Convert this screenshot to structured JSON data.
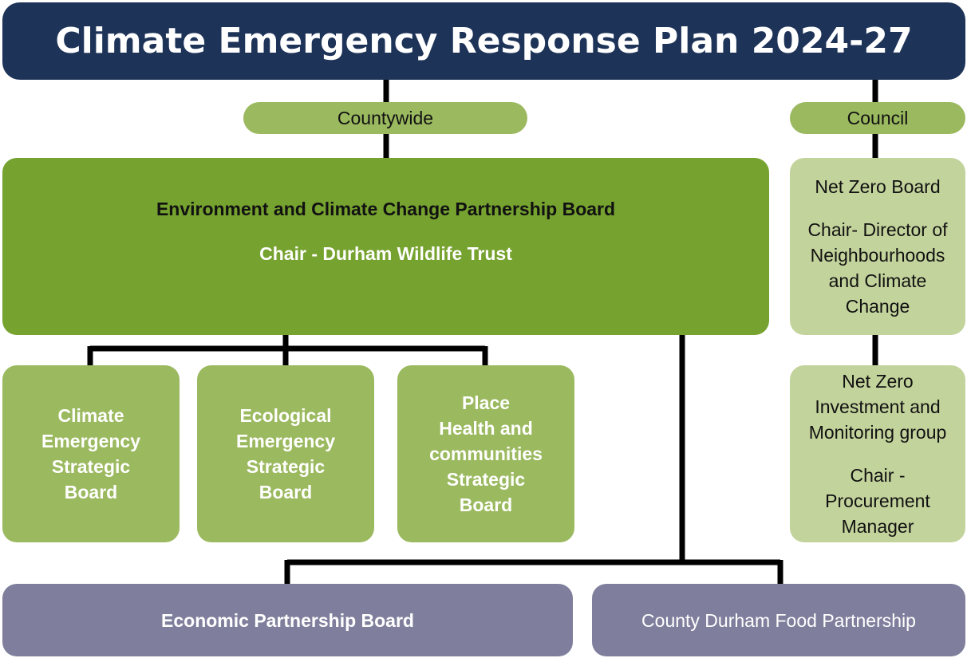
{
  "title": "Climate Emergency Response Plan 2024-27",
  "countywide": {
    "label": "Countywide",
    "main_board": {
      "name": "Environment and Climate Change Partnership Board",
      "chair": "Chair - Durham Wildlife Trust"
    },
    "strategic_boards": [
      {
        "lines": [
          "Climate",
          "Emergency",
          "Strategic",
          "Board"
        ]
      },
      {
        "lines": [
          "Ecological",
          "Emergency",
          "Strategic",
          "Board"
        ]
      },
      {
        "lines": [
          "Place",
          "Health and",
          "communities",
          "Strategic",
          "Board"
        ]
      }
    ]
  },
  "council": {
    "label": "Council",
    "boards": [
      {
        "name_lines": [
          "Net Zero Board"
        ],
        "chair_lines": [
          "Chair- Director of",
          "Neighbourhoods",
          "and Climate",
          "Change"
        ]
      },
      {
        "name_lines": [
          "Net Zero",
          "Investment and",
          "Monitoring group"
        ],
        "chair_lines": [
          "Chair -",
          "Procurement",
          "Manager"
        ]
      }
    ]
  },
  "partnerships": [
    "Economic Partnership Board",
    "County Durham Food Partnership"
  ]
}
